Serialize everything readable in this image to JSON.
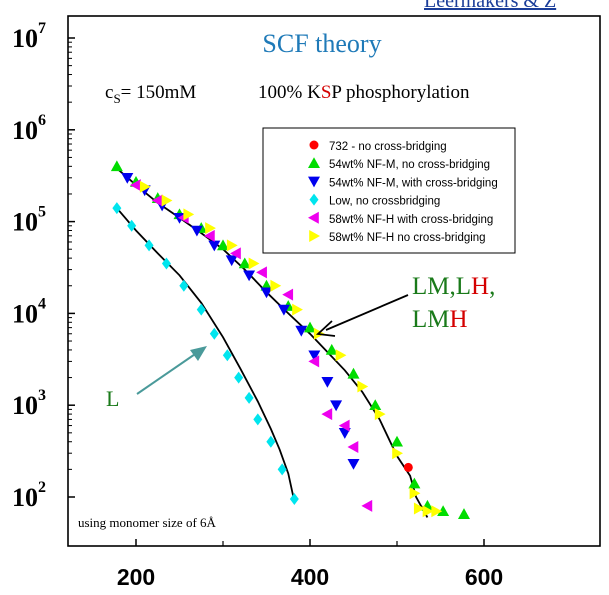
{
  "chart_data": {
    "type": "scatter",
    "title": "SCF theory",
    "header_text": "Leermakers & Z",
    "condition_prefix": "c",
    "condition_subscript": "S",
    "condition_value": "= 150mM",
    "phosphorylation_pre": "100% K",
    "phosphorylation_mid": "S",
    "phosphorylation_post": "P phosphorylation",
    "footnote": "using monomer size of 6Å",
    "x_ticks": [
      "200",
      "400",
      "600"
    ],
    "y_ticks": [
      {
        "base": "10",
        "exp": "2",
        "value": 100
      },
      {
        "base": "10",
        "exp": "3",
        "value": 1000
      },
      {
        "base": "10",
        "exp": "4",
        "value": 10000
      },
      {
        "base": "10",
        "exp": "5",
        "value": 100000
      },
      {
        "base": "10",
        "exp": "6",
        "value": 1000000
      },
      {
        "base": "10",
        "exp": "7",
        "value": 10000000
      }
    ],
    "xlim": [
      140,
      600
    ],
    "ylim": [
      50,
      10000000
    ],
    "y_scale": "log",
    "legend_position": "top-right",
    "annotations": {
      "L": {
        "text": "L",
        "color": "#1a7a1a"
      },
      "LM_LH_line1": [
        {
          "text": "LM",
          "color": "#1a7a1a"
        },
        {
          "text": ",",
          "color": "#1a7a1a"
        },
        {
          "text": "L",
          "color": "#1a7a1a"
        },
        {
          "text": "H",
          "color": "#d40000"
        },
        {
          "text": ",",
          "color": "#1a7a1a"
        }
      ],
      "LM_LH_line2": [
        {
          "text": "LM",
          "color": "#1a7a1a"
        },
        {
          "text": "H",
          "color": "#d40000"
        }
      ]
    },
    "series": [
      {
        "name": "732 - no cross-bridging",
        "marker": "circle",
        "color": "#ff0000",
        "points": [
          [
            513,
            210
          ]
        ]
      },
      {
        "name": "54wt% NF-M, no cross-bridging",
        "marker": "triangle-up",
        "color": "#00dd00",
        "points": [
          [
            178,
            400000
          ],
          [
            200,
            270000
          ],
          [
            225,
            180000
          ],
          [
            250,
            120000
          ],
          [
            275,
            85000
          ],
          [
            300,
            55000
          ],
          [
            325,
            35000
          ],
          [
            350,
            20000
          ],
          [
            375,
            12000
          ],
          [
            400,
            7000
          ],
          [
            425,
            4000
          ],
          [
            450,
            2200
          ],
          [
            475,
            1000
          ],
          [
            500,
            400
          ],
          [
            520,
            140
          ],
          [
            535,
            80
          ],
          [
            553,
            70
          ],
          [
            577,
            65
          ]
        ]
      },
      {
        "name": "54wt% NF-M, with cross-bridging",
        "marker": "triangle-down",
        "color": "#0000ee",
        "points": [
          [
            190,
            300000
          ],
          [
            210,
            220000
          ],
          [
            230,
            150000
          ],
          [
            250,
            110000
          ],
          [
            270,
            80000
          ],
          [
            290,
            55000
          ],
          [
            310,
            38000
          ],
          [
            330,
            26000
          ],
          [
            350,
            17000
          ],
          [
            370,
            11000
          ],
          [
            390,
            6500
          ],
          [
            405,
            3500
          ],
          [
            420,
            1800
          ],
          [
            430,
            1000
          ],
          [
            440,
            500
          ],
          [
            450,
            230
          ]
        ]
      },
      {
        "name": "Low, no crossbridging",
        "marker": "diamond",
        "color": "#00e5ee",
        "points": [
          [
            178,
            140000
          ],
          [
            195,
            90000
          ],
          [
            215,
            55000
          ],
          [
            235,
            35000
          ],
          [
            255,
            20000
          ],
          [
            275,
            11000
          ],
          [
            290,
            6000
          ],
          [
            305,
            3500
          ],
          [
            318,
            2000
          ],
          [
            330,
            1200
          ],
          [
            340,
            700
          ],
          [
            355,
            400
          ],
          [
            368,
            200
          ],
          [
            382,
            95
          ]
        ]
      },
      {
        "name": "58wt% NF-H with cross-bridging",
        "marker": "triangle-left",
        "color": "#ee00ee",
        "points": [
          [
            200,
            250000
          ],
          [
            225,
            170000
          ],
          [
            255,
            110000
          ],
          [
            285,
            70000
          ],
          [
            315,
            45000
          ],
          [
            345,
            28000
          ],
          [
            375,
            16000
          ],
          [
            405,
            3000
          ],
          [
            420,
            800
          ],
          [
            440,
            600
          ],
          [
            450,
            350
          ],
          [
            466,
            80
          ]
        ]
      },
      {
        "name": "58wt% NF-H no cross-bridging",
        "marker": "triangle-right",
        "color": "#ffff00",
        "points": [
          [
            210,
            240000
          ],
          [
            235,
            170000
          ],
          [
            260,
            120000
          ],
          [
            285,
            85000
          ],
          [
            310,
            55000
          ],
          [
            335,
            35000
          ],
          [
            360,
            20000
          ],
          [
            385,
            11000
          ],
          [
            410,
            6000
          ],
          [
            435,
            3500
          ],
          [
            460,
            1600
          ],
          [
            480,
            800
          ],
          [
            500,
            300
          ],
          [
            520,
            110
          ],
          [
            525,
            75
          ],
          [
            535,
            70
          ],
          [
            545,
            70
          ]
        ]
      }
    ],
    "fit_curves": [
      {
        "points": [
          [
            178,
            380000
          ],
          [
            200,
            250000
          ],
          [
            225,
            160000
          ],
          [
            250,
            110000
          ],
          [
            275,
            75000
          ],
          [
            300,
            50000
          ],
          [
            325,
            30000
          ],
          [
            350,
            17000
          ],
          [
            375,
            10000
          ],
          [
            400,
            6000
          ],
          [
            420,
            3800
          ],
          [
            440,
            2400
          ],
          [
            460,
            1400
          ],
          [
            480,
            700
          ],
          [
            500,
            280
          ],
          [
            515,
            170
          ],
          [
            522,
            100
          ],
          [
            535,
            60
          ]
        ]
      },
      {
        "points": [
          [
            178,
            140000
          ],
          [
            200,
            80000
          ],
          [
            225,
            45000
          ],
          [
            250,
            26000
          ],
          [
            275,
            13000
          ],
          [
            300,
            5500
          ],
          [
            320,
            2500
          ],
          [
            340,
            1100
          ],
          [
            355,
            550
          ],
          [
            365,
            330
          ],
          [
            375,
            180
          ],
          [
            382,
            90
          ]
        ]
      }
    ]
  }
}
